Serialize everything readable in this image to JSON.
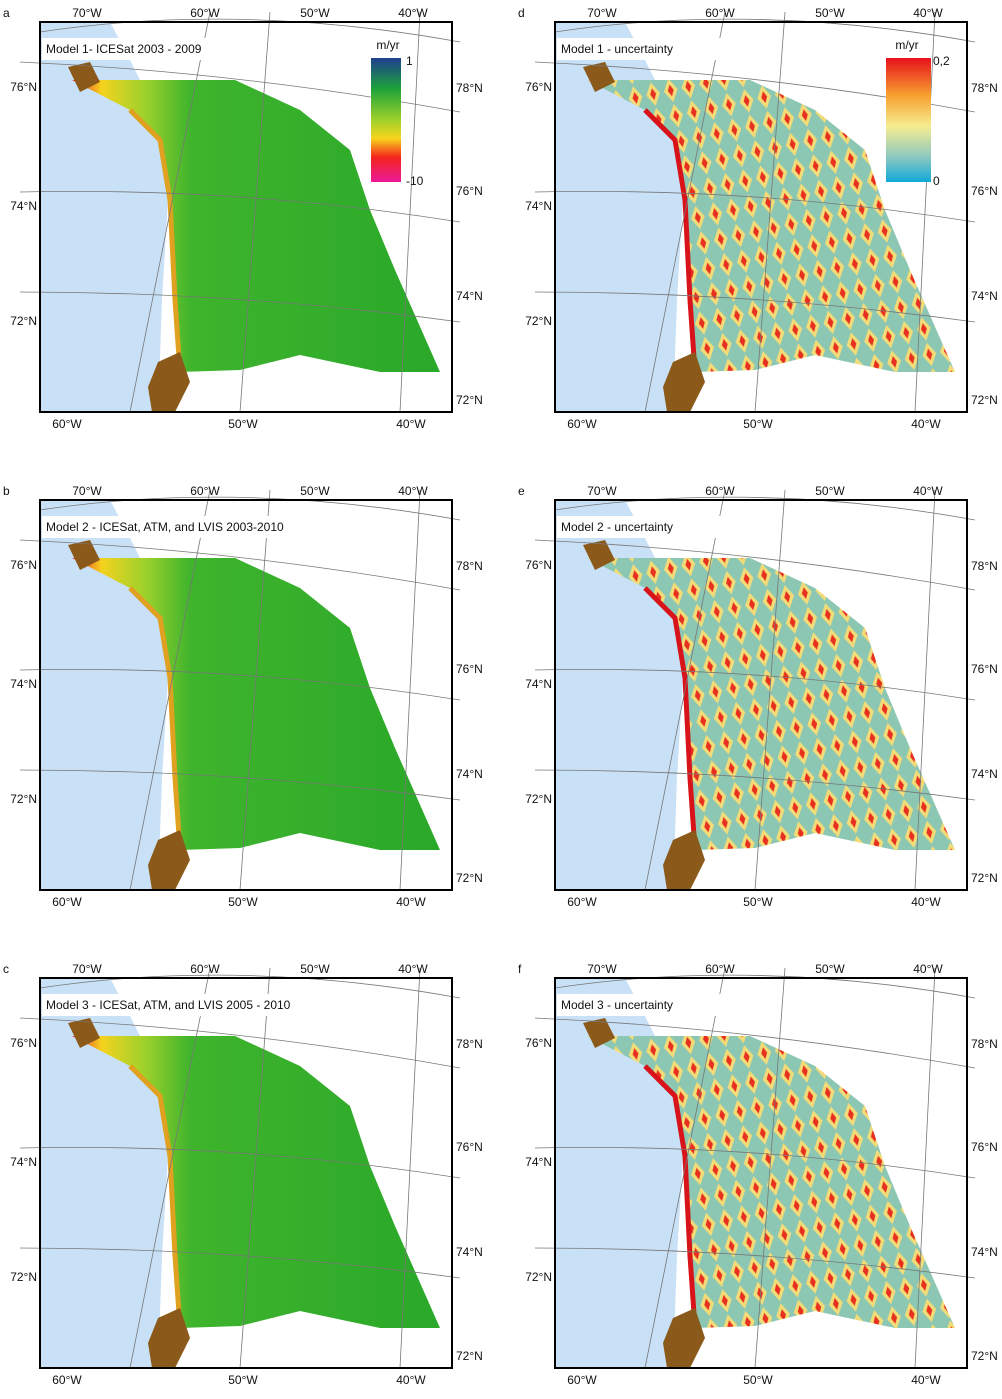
{
  "panels": [
    {
      "letter": "a",
      "title": "Model 1- ICESat 2003 - 2009",
      "top_labels": [
        "70°W",
        "60°W",
        "50°W",
        "40°W"
      ],
      "bottom_labels": [
        "60°W",
        "50°W",
        "40°W"
      ],
      "left_labels": [
        "76°N",
        "74°N",
        "72°N"
      ],
      "right_labels": [
        "78°N",
        "76°N",
        "74°N",
        "72°N"
      ],
      "colorbar": {
        "unit": "m/yr",
        "max": "1",
        "min": "-10"
      }
    },
    {
      "letter": "b",
      "title": "Model 2 - ICESat, ATM, and LVIS 2003-2010",
      "top_labels": [
        "70°W",
        "60°W",
        "50°W",
        "40°W"
      ],
      "bottom_labels": [
        "60°W",
        "50°W",
        "40°W"
      ],
      "left_labels": [
        "76°N",
        "74°N",
        "72°N"
      ],
      "right_labels": [
        "78°N",
        "76°N",
        "74°N",
        "72°N"
      ]
    },
    {
      "letter": "c",
      "title": "Model 3 - ICESat, ATM, and LVIS 2005 - 2010",
      "top_labels": [
        "70°W",
        "60°W",
        "50°W",
        "40°W"
      ],
      "bottom_labels": [
        "60°W",
        "50°W",
        "40°W"
      ],
      "left_labels": [
        "76°N",
        "74°N",
        "72°N"
      ],
      "right_labels": [
        "78°N",
        "76°N",
        "74°N",
        "72°N"
      ]
    },
    {
      "letter": "d",
      "title": "Model 1 - uncertainty",
      "top_labels": [
        "70°W",
        "60°W",
        "50°W",
        "40°W"
      ],
      "bottom_labels": [
        "60°W",
        "50°W",
        "40°W"
      ],
      "left_labels": [
        "76°N",
        "74°N",
        "72°N"
      ],
      "right_labels": [
        "78°N",
        "76°N",
        "74°N",
        "72°N"
      ],
      "colorbar": {
        "unit": "m/yr",
        "max": "0,2",
        "min": "0"
      }
    },
    {
      "letter": "e",
      "title": "Model 2 - uncertainty",
      "top_labels": [
        "70°W",
        "60°W",
        "50°W",
        "40°W"
      ],
      "bottom_labels": [
        "60°W",
        "50°W",
        "40°W"
      ],
      "left_labels": [
        "76°N",
        "74°N",
        "72°N"
      ],
      "right_labels": [
        "78°N",
        "76°N",
        "74°N",
        "72°N"
      ]
    },
    {
      "letter": "f",
      "title": "Model 3 - uncertainty",
      "top_labels": [
        "70°W",
        "60°W",
        "50°W",
        "40°W"
      ],
      "bottom_labels": [
        "60°W",
        "50°W",
        "40°W"
      ],
      "left_labels": [
        "76°N",
        "74°N",
        "72°N"
      ],
      "right_labels": [
        "78°N",
        "76°N",
        "74°N",
        "72°N"
      ]
    }
  ]
}
